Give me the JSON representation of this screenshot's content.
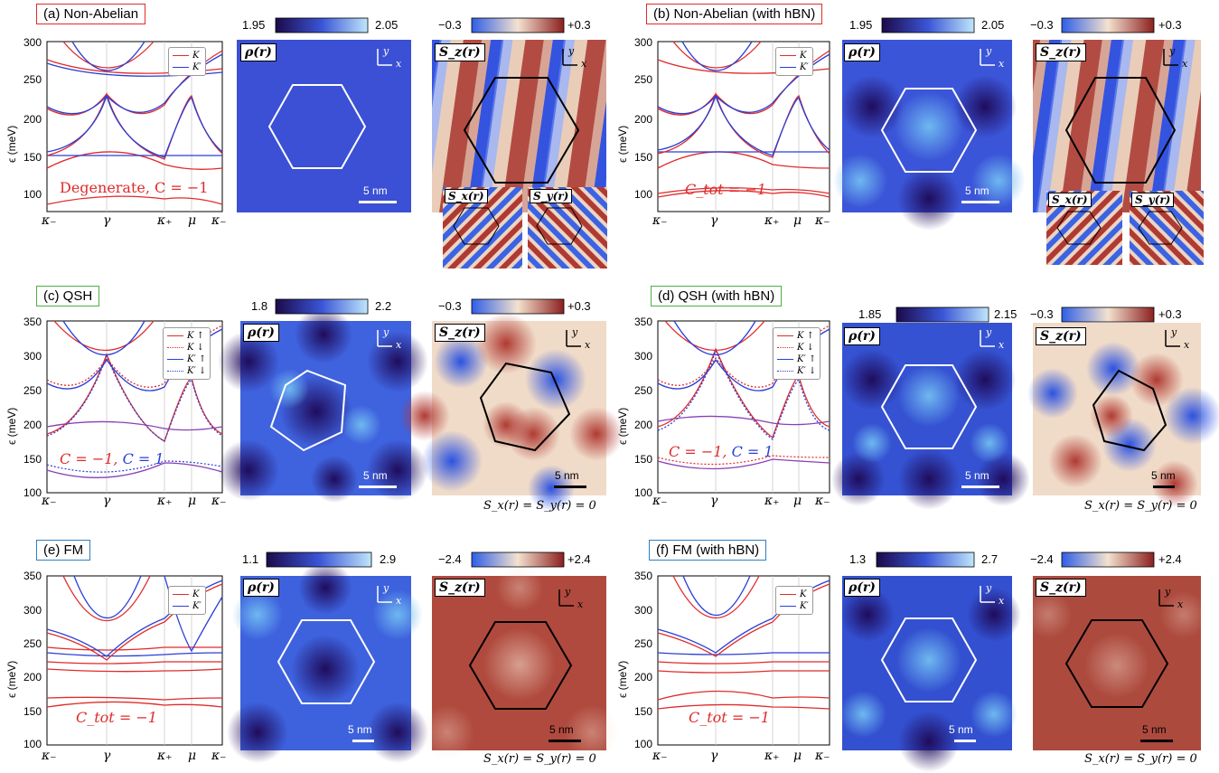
{
  "panels": {
    "a": {
      "title": "(a) Non-Abelian",
      "annot": "Degenerate, C = −1",
      "rho_range": [
        "1.95",
        "2.05"
      ],
      "sz_range": [
        "−0.3",
        "+0.3"
      ]
    },
    "b": {
      "title": "(b) Non-Abelian (with hBN)",
      "annot": "C_tot = −1",
      "rho_range": [
        "1.95",
        "2.05"
      ],
      "sz_range": [
        "−0.3",
        "+0.3"
      ]
    },
    "c": {
      "title": "(c) QSH",
      "annot_red": "C = −1,",
      "annot_blue": "C = 1",
      "rho_range": [
        "1.8",
        "2.2"
      ],
      "sz_range": [
        "−0.3",
        "+0.3"
      ]
    },
    "d": {
      "title": "(d) QSH (with hBN)",
      "annot_red": "C = −1,",
      "annot_blue": "C = 1",
      "rho_range": [
        "1.85",
        "2.15"
      ],
      "sz_range": [
        "−0.3",
        "+0.3"
      ]
    },
    "e": {
      "title": "(e) FM",
      "annot": "C_tot = −1",
      "rho_range": [
        "1.1",
        "2.9"
      ],
      "sz_range": [
        "−2.4",
        "+2.4"
      ]
    },
    "f": {
      "title": "(f) FM (with hBN)",
      "annot": "C_tot = −1",
      "rho_range": [
        "1.3",
        "2.7"
      ],
      "sz_range": [
        "−2.4",
        "+2.4"
      ]
    }
  },
  "labels": {
    "ylabel": "ϵ (meV)",
    "xticks": [
      "κ₋",
      "γ",
      "κ₊",
      "μ",
      "κ₋"
    ],
    "rho": "ρ(r)",
    "sz": "S_z(r)",
    "sx": "S_x(r)",
    "sy": "S_y(r)",
    "scale": "5 nm",
    "sxsy_zero": "S_x(r) = S_y(r) = 0",
    "axis_y": "y",
    "axis_x": "x"
  },
  "legends": {
    "two": [
      "K",
      "K′"
    ],
    "four": [
      "K ↑",
      "K ↓",
      "K′ ↑",
      "K′ ↓"
    ]
  },
  "yticks": {
    "row1": [
      "300",
      "250",
      "200",
      "150",
      "100"
    ],
    "row2": [
      "350",
      "300",
      "250",
      "200",
      "150",
      "100"
    ],
    "row3": [
      "350",
      "300",
      "250",
      "200",
      "150",
      "100"
    ]
  },
  "colors": {
    "red": "#e02b2b",
    "blue": "#2a3fd6",
    "green": "#4fae44",
    "purple": "#8a3fb5",
    "rho_dark": "#2a0a6e",
    "rho_light": "#7ec8f5",
    "sz_blue": "#2f5ee6",
    "sz_red": "#a8342f"
  }
}
